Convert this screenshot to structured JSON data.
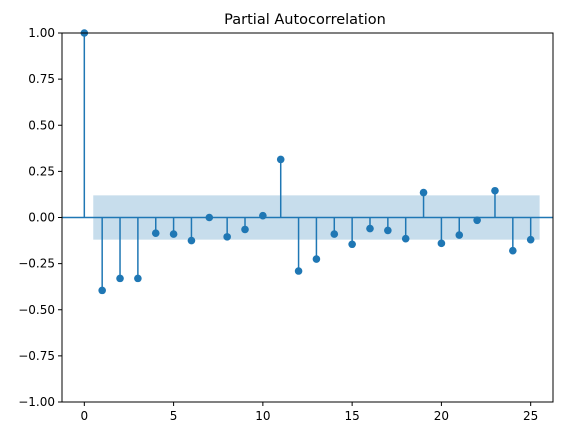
{
  "chart_data": {
    "type": "stem",
    "title": "Partial Autocorrelation",
    "xlabel": "",
    "ylabel": "",
    "xlim": [
      -1.25,
      26.25
    ],
    "ylim": [
      -1.0,
      1.0
    ],
    "x_ticks": [
      0,
      5,
      10,
      15,
      20,
      25
    ],
    "y_ticks": [
      -1.0,
      -0.75,
      -0.5,
      -0.25,
      0.0,
      0.25,
      0.5,
      0.75,
      1.0
    ],
    "x_tick_labels": [
      "0",
      "5",
      "10",
      "15",
      "20",
      "25"
    ],
    "y_tick_labels": [
      "−1.00",
      "−0.75",
      "−0.50",
      "−0.25",
      "0.00",
      "0.25",
      "0.50",
      "0.75",
      "1.00"
    ],
    "lags": [
      0,
      1,
      2,
      3,
      4,
      5,
      6,
      7,
      8,
      9,
      10,
      11,
      12,
      13,
      14,
      15,
      16,
      17,
      18,
      19,
      20,
      21,
      22,
      23,
      24,
      25
    ],
    "values": [
      1.0,
      -0.395,
      -0.33,
      -0.33,
      -0.085,
      -0.09,
      -0.125,
      0.0,
      -0.105,
      -0.065,
      0.01,
      0.315,
      -0.29,
      -0.225,
      -0.09,
      -0.145,
      -0.06,
      -0.07,
      -0.115,
      0.135,
      -0.14,
      -0.095,
      -0.015,
      0.145,
      -0.18,
      -0.12
    ],
    "confidence_band": {
      "x_range": [
        0.5,
        25.5
      ],
      "upper": 0.12,
      "lower": -0.12
    },
    "grid": false,
    "colors": {
      "stem": "#1f77b4",
      "marker": "#1f77b4",
      "band": "#1f77b4",
      "baseline": "#1f77b4"
    }
  }
}
